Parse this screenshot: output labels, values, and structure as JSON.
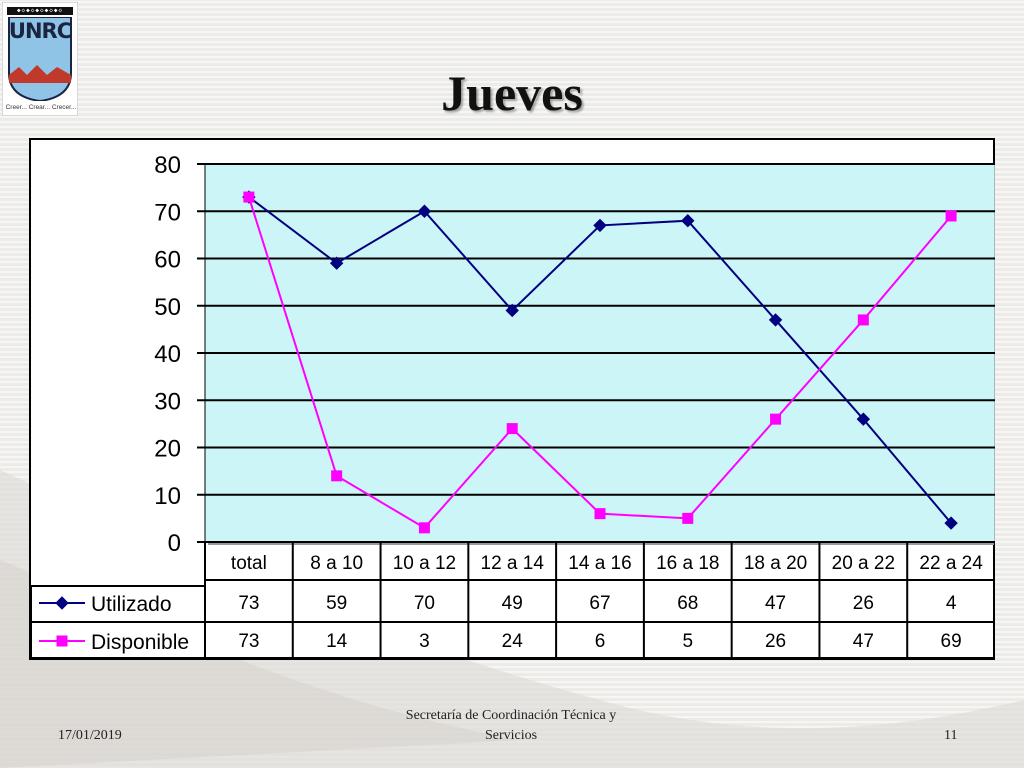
{
  "logo": {
    "text": "UNRC",
    "caption": "Creer... Crear... Crecer...",
    "colors": {
      "sky": "#8fc4e6",
      "mountains": "#c0392b",
      "navy": "#1b2540"
    }
  },
  "slide": {
    "title": "Jueves",
    "footer_date": "17/01/2019",
    "footer_center": "Secretaría de Coordinación Técnica y Servicios",
    "slide_number": "11"
  },
  "chart_data": {
    "type": "line",
    "title": "",
    "xlabel": "",
    "ylabel": "",
    "categories": [
      "total",
      "8 a 10",
      "10 a 12",
      "12 a 14",
      "14 a 16",
      "16 a 18",
      "18 a 20",
      "20 a 22",
      "22 a 24"
    ],
    "ylim": [
      0,
      80
    ],
    "yticks": [
      0,
      10,
      20,
      30,
      40,
      50,
      60,
      70,
      80
    ],
    "grid": true,
    "plot_background": "#ccf5f8",
    "legend": "data-table-left",
    "series": [
      {
        "name": "Utilizado",
        "color": "#000080",
        "marker": "diamond",
        "values": [
          73,
          59,
          70,
          49,
          67,
          68,
          47,
          26,
          4
        ]
      },
      {
        "name": "Disponible",
        "color": "#ff00ff",
        "marker": "square",
        "values": [
          73,
          14,
          3,
          24,
          6,
          5,
          26,
          47,
          69
        ]
      }
    ],
    "data_table": true
  }
}
